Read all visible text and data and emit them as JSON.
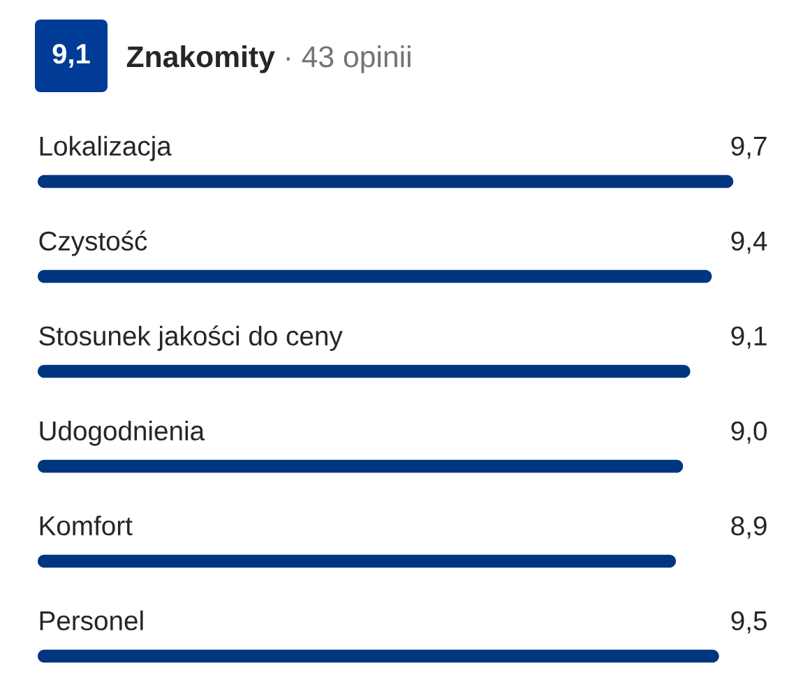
{
  "chart_data": {
    "type": "bar",
    "orientation": "horizontal",
    "title": "Znakomity",
    "subtitle": "· 43 opinii",
    "annotations": [
      "9,1"
    ],
    "categories": [
      "Lokalizacja",
      "Czystość",
      "Stosunek jakości do ceny",
      "Udogodnienia",
      "Komfort",
      "Personel"
    ],
    "values": [
      9.7,
      9.4,
      9.1,
      9.0,
      8.9,
      9.5
    ],
    "value_labels": [
      "9,7",
      "9,4",
      "9,1",
      "9,0",
      "8,9",
      "9,5"
    ],
    "color": "#003580"
  }
}
